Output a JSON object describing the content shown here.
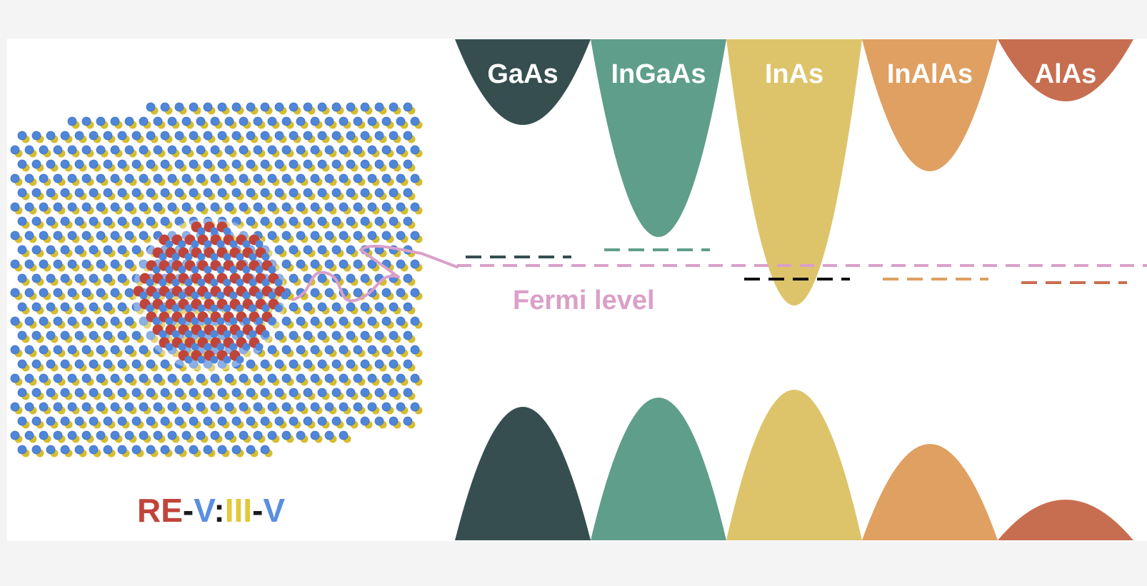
{
  "colors": {
    "background": "#f4f4f4",
    "panel": "#ffffff",
    "fermi": "#d9a0c8",
    "red": "#c0443a",
    "blue": "#5a8fe0",
    "yellow": "#e2c93a",
    "black": "#1a1a1a",
    "dark_atom_blue": "#4f86d9",
    "atom_yellow": "#d6bd2f"
  },
  "materials": [
    {
      "name": "GaAs",
      "color": "#364e50",
      "level_color": "#364e50"
    },
    {
      "name": "InGaAs",
      "color": "#5f9e8a",
      "level_color": "#5f9e8a"
    },
    {
      "name": "InAs",
      "color": "#ddc46b",
      "level_color": "#111111"
    },
    {
      "name": "InAlAs",
      "color": "#dfa062",
      "level_color": "#dfa062"
    },
    {
      "name": "AlAs",
      "color": "#c86e50",
      "level_color": "#c86e50"
    }
  ],
  "fermi_label": "Fermi level",
  "formula": {
    "re": "RE",
    "dash1": "-",
    "v1": "V",
    "colon": ":",
    "iii": "III",
    "dash2": "-",
    "v2": "V"
  },
  "icons": {
    "crystal": "crystal-lattice-icon",
    "nanoparticle": "rare-earth-nanoparticle-icon"
  }
}
